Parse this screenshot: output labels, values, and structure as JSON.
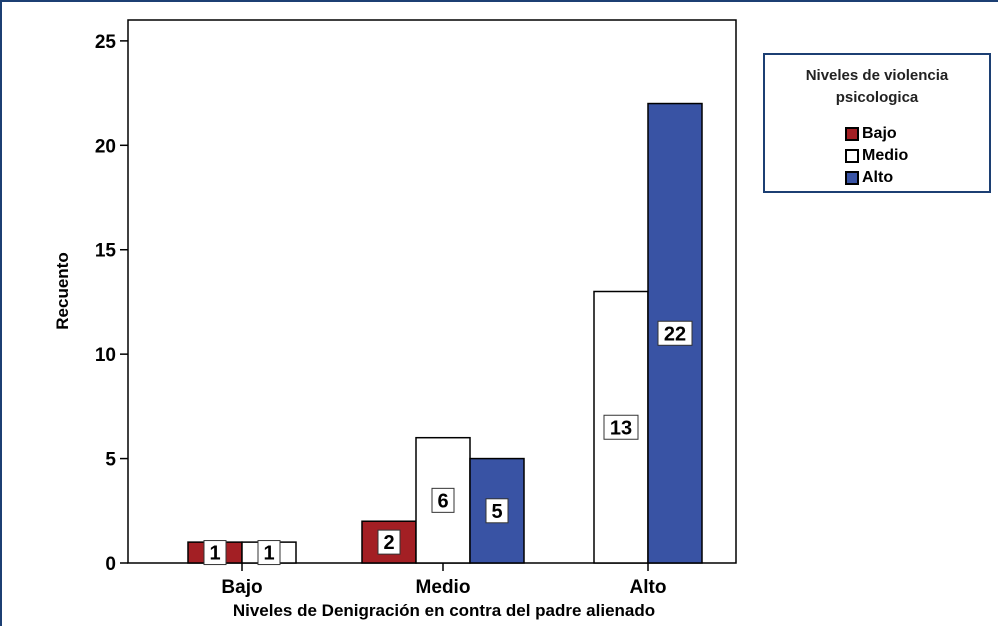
{
  "chart_data": {
    "type": "bar",
    "categories": [
      "Bajo",
      "Medio",
      "Alto"
    ],
    "series": [
      {
        "name": "Bajo",
        "color": "#a31f24",
        "values": [
          1,
          2,
          0
        ]
      },
      {
        "name": "Medio",
        "color": "#ffffff",
        "values": [
          1,
          6,
          13
        ]
      },
      {
        "name": "Alto",
        "color": "#3953a4",
        "values": [
          0,
          5,
          22
        ]
      }
    ],
    "yticks": [
      0,
      5,
      10,
      15,
      20,
      25
    ],
    "ylim": [
      0,
      26
    ],
    "xlabel": "Niveles de Denigración en contra del padre alienado",
    "ylabel": "Recuento",
    "legend": {
      "title_line1": "Niveles de violencia",
      "title_line2": "psicologica",
      "position": "top-right"
    },
    "grid": false
  }
}
